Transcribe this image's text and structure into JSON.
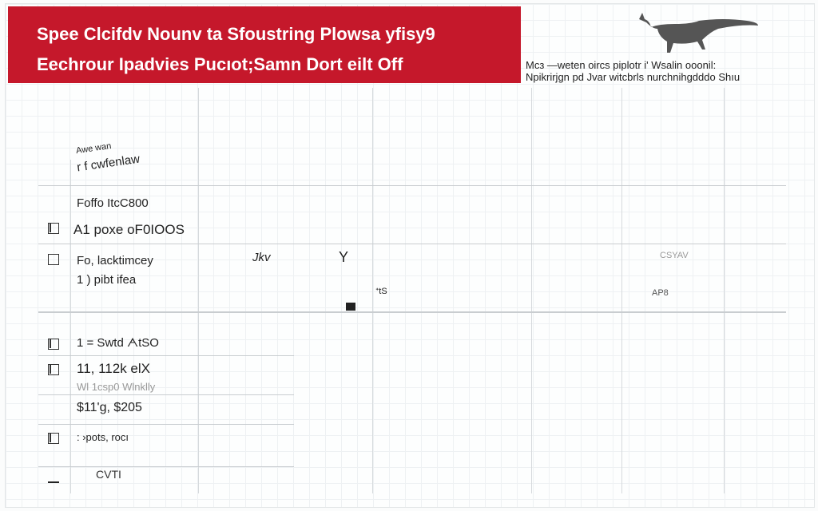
{
  "header": {
    "title_line1": "Spee Clcifdv Nounv ta Sfoustring Plowsa yfisy9",
    "title_line2": "Eechrour Ipadvies Pucıot;Samn Dort eilt Off",
    "brand_color": "#c5182b",
    "mascot_icon": "animal-silhouette-icon",
    "note_line1": "Mcз  —weten oircs piplotr  i' Wsalin ooonil:",
    "note_line2": "Npikrirjgn pd  Jvar witcbrls nurchnihgdddo Shıu"
  },
  "section_heading": {
    "line1": "Awe  wan",
    "line2": "r f  cwfenlaw"
  },
  "rows": [
    {
      "checked": false,
      "line1": "Foffo ItcC800",
      "line2": ""
    },
    {
      "checked": true,
      "line1": "A1 poxe oF0IOOS",
      "line2": ""
    },
    {
      "checked": false,
      "line1": "Fo, lacktimcey",
      "line2": "1 ) pibt ifea",
      "mark_a": "Jkv",
      "mark_b": "Y",
      "mark_c": "ᐩtS",
      "right_a": "CSYAV",
      "right_b": "AP8"
    },
    {
      "checked": true,
      "line1": "1 = Swtd ᗅtSO"
    },
    {
      "checked": true,
      "line1": "11, 112k elX",
      "line2": "Wl 1csp0  Wlnklly"
    },
    {
      "checked": null,
      "line1": "$11'g,  $205"
    },
    {
      "checked": true,
      "line1": ":  ›pots, rocı"
    },
    {
      "checked": null,
      "line1": "CVTI"
    }
  ]
}
